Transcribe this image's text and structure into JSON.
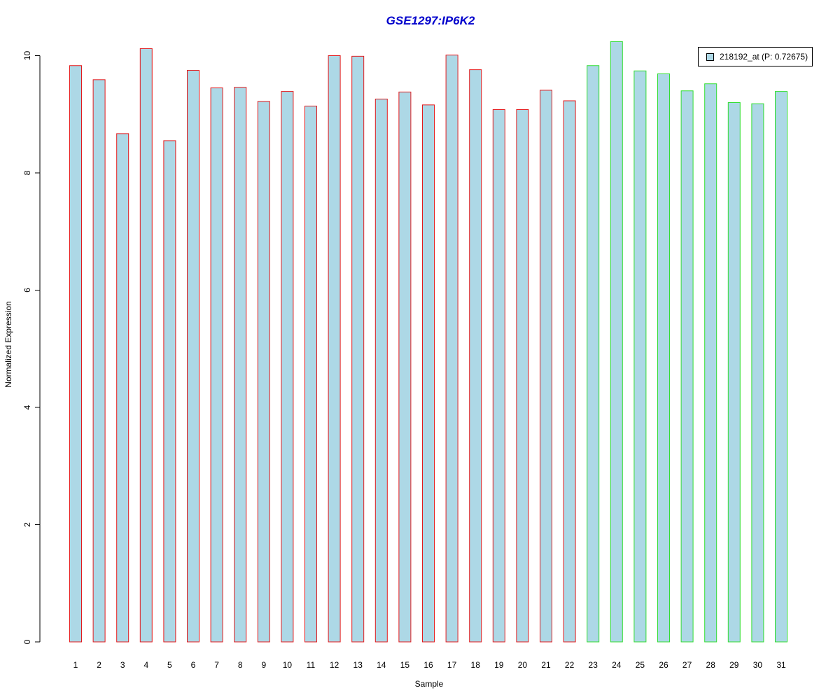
{
  "chart_data": {
    "type": "bar",
    "title": "GSE1297:IP6K2",
    "xlabel": "Sample",
    "ylabel": "Normalized Expression",
    "ylim": [
      0,
      10.25
    ],
    "yticks": [
      "0",
      "2",
      "4",
      "6",
      "8",
      "10"
    ],
    "categories": [
      "1",
      "2",
      "3",
      "4",
      "5",
      "6",
      "7",
      "8",
      "9",
      "10",
      "11",
      "12",
      "13",
      "14",
      "15",
      "16",
      "17",
      "18",
      "19",
      "20",
      "21",
      "22",
      "23",
      "24",
      "25",
      "26",
      "27",
      "28",
      "29",
      "30",
      "31"
    ],
    "series": [
      {
        "name": "218192_at (P: 0.72675)",
        "values": [
          9.83,
          9.59,
          8.67,
          10.12,
          8.55,
          9.75,
          9.45,
          9.46,
          9.22,
          9.39,
          9.14,
          10.0,
          9.99,
          9.26,
          9.38,
          9.16,
          10.01,
          9.76,
          9.08,
          9.08,
          9.41,
          9.23,
          9.83,
          10.24,
          9.74,
          9.69,
          9.4,
          9.52,
          9.2,
          9.18,
          9.39
        ]
      }
    ],
    "group_border_colors": [
      "#e31a1c",
      "#e31a1c",
      "#e31a1c",
      "#e31a1c",
      "#e31a1c",
      "#e31a1c",
      "#e31a1c",
      "#e31a1c",
      "#e31a1c",
      "#e31a1c",
      "#e31a1c",
      "#e31a1c",
      "#e31a1c",
      "#e31a1c",
      "#e31a1c",
      "#e31a1c",
      "#e31a1c",
      "#e31a1c",
      "#e31a1c",
      "#e31a1c",
      "#e31a1c",
      "#e31a1c",
      "#33dd33",
      "#33dd33",
      "#33dd33",
      "#33dd33",
      "#33dd33",
      "#33dd33",
      "#33dd33",
      "#33dd33",
      "#33dd33"
    ],
    "bar_fill": "#add8e6",
    "title_color": "#0000cc",
    "legend_position": "top-right",
    "grid": false
  }
}
